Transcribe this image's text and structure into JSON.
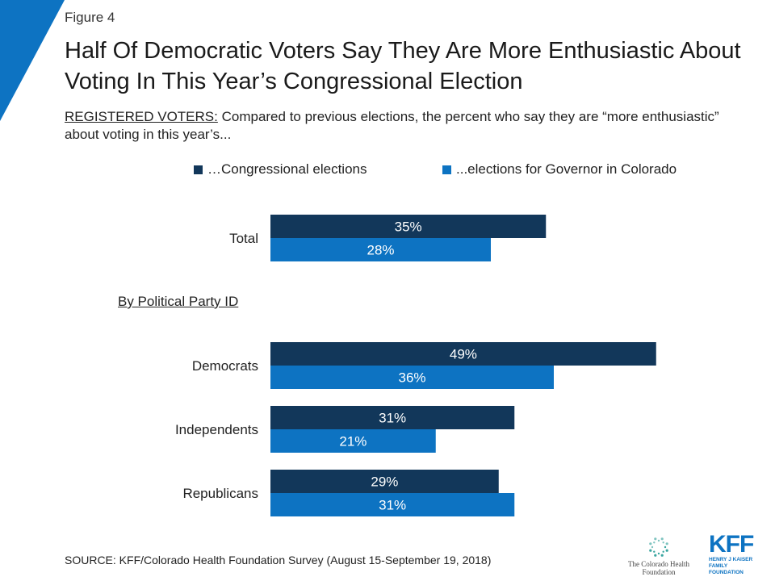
{
  "header": {
    "figure_label": "Figure 4",
    "title": "Half Of Democratic Voters Say They Are More Enthusiastic About Voting In This Year’s Congressional Election",
    "subtitle_lead": "REGISTERED VOTERS:",
    "subtitle_rest": " Compared to previous elections, the percent who say they are “more enthusiastic” about voting in this year’s..."
  },
  "colors": {
    "series_congressional": "#12375a",
    "series_governor": "#0d73c2",
    "corner_accent": "#0d73c2"
  },
  "chart_data": {
    "type": "bar",
    "orientation": "horizontal",
    "categories": [
      "Total",
      "Democrats",
      "Independents",
      "Republicans"
    ],
    "section_label": "By Political Party ID",
    "series": [
      {
        "name": "…Congressional elections",
        "values": [
          35,
          49,
          31,
          29
        ],
        "labels": [
          "35%",
          "49%",
          "31%",
          "29%"
        ]
      },
      {
        "name": "...elections for Governor in Colorado",
        "values": [
          28,
          36,
          21,
          31
        ],
        "labels": [
          "28%",
          "36%",
          "21%",
          "31%"
        ]
      }
    ],
    "legend_position": "top",
    "grid": false
  },
  "footer": {
    "source": "SOURCE: KFF/Colorado Health Foundation Survey (August 15-September 19, 2018)",
    "partner_logo_text": "The Colorado Health Foundation",
    "kff_logo_word": "KFF",
    "kff_logo_sub": "HENRY J KAISER FAMILY FOUNDATION"
  }
}
